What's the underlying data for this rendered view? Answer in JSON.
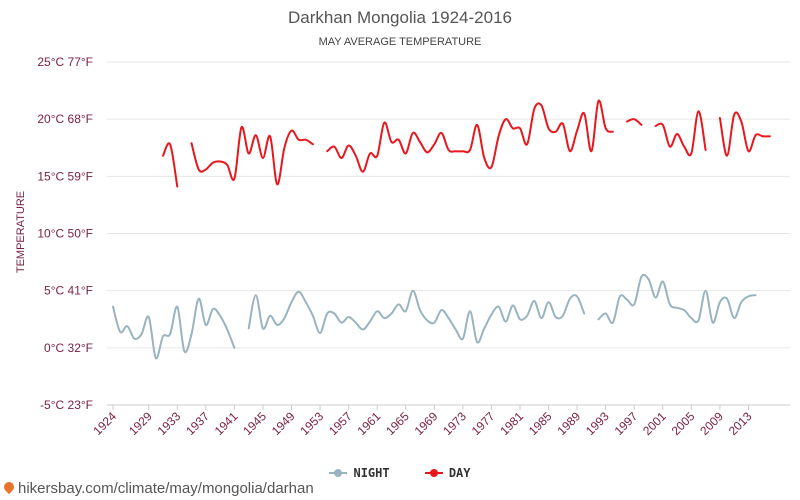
{
  "header": {
    "title": "Darkhan Mongolia 1924-2016",
    "subtitle": "MAY AVERAGE TEMPERATURE"
  },
  "footer": {
    "source": "hikersbay.com/climate/may/mongolia/darhan"
  },
  "colors": {
    "night": "#98b4c0",
    "day": "#e8171c",
    "axis_text": "#7a1f3d",
    "grid": "#e6e6e6"
  },
  "chart_data": {
    "type": "line",
    "title": "Darkhan Mongolia 1924-2016",
    "subtitle": "MAY AVERAGE TEMPERATURE",
    "ylabel": "TEMPERATURE",
    "ylim": [
      -5,
      25
    ],
    "xlim": [
      1924,
      2016
    ],
    "y_ticks": [
      -5,
      0,
      5,
      10,
      15,
      20,
      25
    ],
    "y_tick_labels": [
      "-5°C 23°F",
      "0°C 32°F",
      "5°C 41°F",
      "10°C 50°F",
      "15°C 59°F",
      "20°C 68°F",
      "25°C 77°F"
    ],
    "x_ticks": [
      1924,
      1929,
      1933,
      1937,
      1941,
      1945,
      1949,
      1953,
      1957,
      1961,
      1965,
      1969,
      1973,
      1977,
      1981,
      1985,
      1989,
      1993,
      1997,
      2001,
      2005,
      2009,
      2013
    ],
    "x_tick_labels": [
      "1924",
      "1929",
      "1933",
      "1937",
      "1941",
      "1945",
      "1949",
      "1953",
      "1957",
      "1961",
      "1965",
      "1969",
      "1973",
      "1977",
      "1981",
      "1985",
      "1989",
      "1993",
      "1997",
      "2001",
      "2005",
      "2009",
      "2013"
    ],
    "grid": true,
    "legend_position": "bottom-center",
    "series": [
      {
        "name": "NIGHT",
        "color": "#98b4c0",
        "segments": [
          [
            [
              1924,
              3.6
            ],
            [
              1925,
              1.4
            ],
            [
              1926,
              1.9
            ],
            [
              1927,
              0.8
            ],
            [
              1928,
              1.2
            ],
            [
              1929,
              2.7
            ],
            [
              1930,
              -0.9
            ],
            [
              1931,
              1.0
            ],
            [
              1932,
              1.2
            ],
            [
              1933,
              3.6
            ],
            [
              1934,
              -0.3
            ],
            [
              1935,
              1.2
            ],
            [
              1936,
              4.3
            ],
            [
              1937,
              2.0
            ],
            [
              1938,
              3.4
            ],
            [
              1939,
              2.8
            ],
            [
              1940,
              1.6
            ],
            [
              1941,
              0.0
            ]
          ],
          [
            [
              1943,
              1.7
            ],
            [
              1944,
              4.6
            ],
            [
              1945,
              1.7
            ],
            [
              1946,
              2.8
            ],
            [
              1947,
              2.0
            ],
            [
              1948,
              2.6
            ],
            [
              1949,
              4.0
            ],
            [
              1950,
              4.9
            ],
            [
              1951,
              4.0
            ],
            [
              1952,
              2.8
            ],
            [
              1953,
              1.3
            ],
            [
              1954,
              3.0
            ],
            [
              1955,
              3.0
            ],
            [
              1956,
              2.2
            ],
            [
              1957,
              2.7
            ],
            [
              1958,
              2.2
            ],
            [
              1959,
              1.6
            ],
            [
              1960,
              2.3
            ],
            [
              1961,
              3.2
            ],
            [
              1962,
              2.6
            ],
            [
              1963,
              3.0
            ],
            [
              1964,
              3.8
            ],
            [
              1965,
              3.2
            ],
            [
              1966,
              5.0
            ],
            [
              1967,
              3.3
            ],
            [
              1968,
              2.4
            ],
            [
              1969,
              2.2
            ],
            [
              1970,
              3.3
            ],
            [
              1971,
              2.6
            ],
            [
              1972,
              1.6
            ],
            [
              1973,
              0.8
            ],
            [
              1974,
              3.2
            ],
            [
              1975,
              0.5
            ],
            [
              1976,
              1.7
            ],
            [
              1977,
              2.9
            ],
            [
              1978,
              3.6
            ],
            [
              1979,
              2.3
            ],
            [
              1980,
              3.7
            ],
            [
              1981,
              2.5
            ],
            [
              1982,
              2.8
            ],
            [
              1983,
              4.1
            ],
            [
              1984,
              2.6
            ],
            [
              1985,
              4.0
            ],
            [
              1986,
              2.7
            ],
            [
              1987,
              2.8
            ],
            [
              1988,
              4.3
            ],
            [
              1989,
              4.5
            ],
            [
              1990,
              3.0
            ]
          ],
          [
            [
              1992,
              2.5
            ],
            [
              1993,
              3.0
            ],
            [
              1994,
              2.2
            ],
            [
              1995,
              4.5
            ],
            [
              1996,
              4.2
            ],
            [
              1997,
              3.8
            ],
            [
              1998,
              6.2
            ],
            [
              1999,
              6.0
            ],
            [
              2000,
              4.4
            ],
            [
              2001,
              5.8
            ],
            [
              2002,
              3.8
            ],
            [
              2003,
              3.5
            ],
            [
              2004,
              3.3
            ],
            [
              2005,
              2.6
            ],
            [
              2006,
              2.4
            ],
            [
              2007,
              5.0
            ],
            [
              2008,
              2.2
            ],
            [
              2009,
              4.0
            ],
            [
              2010,
              4.3
            ],
            [
              2011,
              2.6
            ],
            [
              2012,
              4.0
            ],
            [
              2013,
              4.5
            ],
            [
              2014,
              4.6
            ]
          ]
        ]
      },
      {
        "name": "DAY",
        "color": "#e8171c",
        "segments": [
          [
            [
              1931,
              16.8
            ],
            [
              1932,
              17.8
            ],
            [
              1933,
              14.1
            ]
          ],
          [
            [
              1935,
              17.9
            ],
            [
              1936,
              15.6
            ],
            [
              1937,
              15.6
            ],
            [
              1938,
              16.2
            ],
            [
              1939,
              16.3
            ],
            [
              1940,
              16.0
            ],
            [
              1941,
              14.8
            ],
            [
              1942,
              19.3
            ],
            [
              1943,
              17.0
            ],
            [
              1944,
              18.6
            ],
            [
              1945,
              16.6
            ],
            [
              1946,
              18.5
            ],
            [
              1947,
              14.3
            ],
            [
              1948,
              17.5
            ],
            [
              1949,
              19.0
            ],
            [
              1950,
              18.2
            ],
            [
              1951,
              18.2
            ],
            [
              1952,
              17.8
            ]
          ],
          [
            [
              1954,
              17.2
            ],
            [
              1955,
              17.6
            ],
            [
              1956,
              16.6
            ],
            [
              1957,
              17.7
            ],
            [
              1958,
              16.8
            ],
            [
              1959,
              15.4
            ],
            [
              1960,
              17.0
            ],
            [
              1961,
              16.8
            ],
            [
              1962,
              19.7
            ],
            [
              1963,
              18.0
            ],
            [
              1964,
              18.2
            ],
            [
              1965,
              17.0
            ],
            [
              1966,
              18.8
            ],
            [
              1967,
              18.0
            ],
            [
              1968,
              17.1
            ],
            [
              1969,
              17.8
            ],
            [
              1970,
              18.8
            ],
            [
              1971,
              17.3
            ],
            [
              1972,
              17.2
            ],
            [
              1973,
              17.2
            ],
            [
              1974,
              17.3
            ],
            [
              1975,
              19.5
            ],
            [
              1976,
              16.6
            ],
            [
              1977,
              15.8
            ],
            [
              1978,
              18.5
            ],
            [
              1979,
              20.0
            ],
            [
              1980,
              19.2
            ],
            [
              1981,
              19.2
            ],
            [
              1982,
              17.8
            ],
            [
              1983,
              20.9
            ],
            [
              1984,
              21.2
            ],
            [
              1985,
              19.2
            ],
            [
              1986,
              18.9
            ],
            [
              1987,
              19.6
            ],
            [
              1988,
              17.2
            ],
            [
              1989,
              19.0
            ],
            [
              1990,
              20.5
            ],
            [
              1991,
              17.2
            ],
            [
              1992,
              21.6
            ],
            [
              1993,
              19.2
            ],
            [
              1994,
              18.9
            ]
          ],
          [
            [
              1996,
              19.8
            ],
            [
              1997,
              20.0
            ],
            [
              1998,
              19.5
            ]
          ],
          [
            [
              2000,
              19.4
            ],
            [
              2001,
              19.5
            ],
            [
              2002,
              17.6
            ],
            [
              2003,
              18.7
            ],
            [
              2004,
              17.6
            ],
            [
              2005,
              17.0
            ],
            [
              2006,
              20.7
            ],
            [
              2007,
              17.3
            ]
          ],
          [
            [
              2009,
              20.1
            ],
            [
              2010,
              16.8
            ],
            [
              2011,
              20.4
            ],
            [
              2012,
              19.8
            ],
            [
              2013,
              17.2
            ],
            [
              2014,
              18.6
            ],
            [
              2015,
              18.5
            ],
            [
              2016,
              18.5
            ]
          ]
        ]
      }
    ]
  }
}
